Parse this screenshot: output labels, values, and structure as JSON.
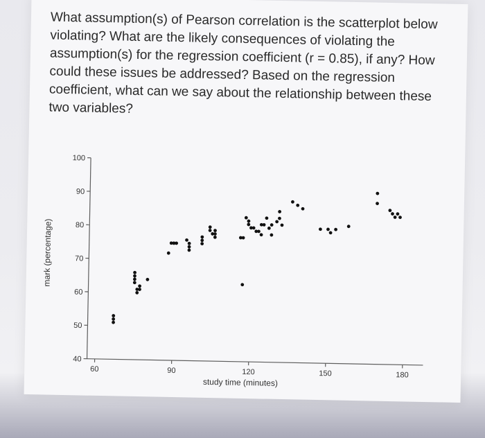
{
  "question": {
    "text": "What assumption(s) of Pearson correlation is the scatterplot below violating? What are the likely consequences of violating the assumption(s) for the regression coefficient (r = 0.85), if any? How could these issues be addressed? Based on the regression coefficient, what can we say about the relationship between these two variables?"
  },
  "chart_data": {
    "type": "scatter",
    "xlabel": "study time (minutes)",
    "ylabel": "mark (percentage)",
    "xlim": [
      57,
      188
    ],
    "ylim": [
      40,
      100
    ],
    "x_ticks": [
      60,
      90,
      120,
      150,
      180
    ],
    "y_ticks": [
      40,
      50,
      60,
      70,
      80,
      90,
      100
    ],
    "grid": false,
    "x": [
      67,
      67,
      67,
      75,
      75,
      75,
      75,
      76,
      76,
      77,
      77,
      80,
      88,
      89,
      90,
      90,
      91,
      95,
      96,
      96,
      96,
      101,
      101,
      101,
      104,
      104,
      105,
      106,
      106,
      106,
      116,
      117,
      117,
      118,
      119,
      119,
      120,
      121,
      122,
      123,
      124,
      124,
      125,
      126,
      127,
      128,
      128,
      130,
      131,
      131,
      132,
      136,
      138,
      140,
      147,
      150,
      151,
      153,
      158,
      169,
      169,
      174,
      175,
      176,
      177,
      178
    ],
    "y": [
      53,
      52,
      51,
      66,
      65,
      64,
      63,
      61,
      60,
      62,
      61,
      64,
      72,
      75,
      75,
      75,
      75,
      76,
      75,
      74,
      73,
      77,
      76,
      75,
      80,
      79,
      78,
      79,
      78,
      77,
      77,
      63,
      77,
      83,
      82,
      81,
      80,
      80,
      79,
      79,
      81,
      78,
      81,
      83,
      80,
      81,
      78,
      82,
      85,
      83,
      81,
      88,
      87,
      86,
      80,
      80,
      79,
      80,
      81,
      91,
      88,
      86,
      85,
      84,
      85,
      84
    ]
  }
}
